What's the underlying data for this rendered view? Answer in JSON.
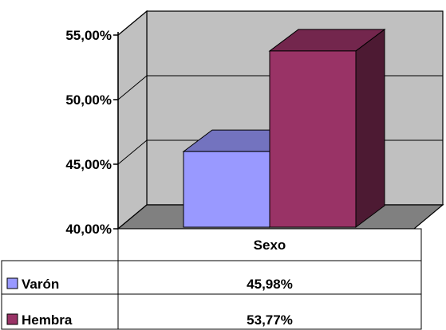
{
  "chart_data": {
    "type": "bar",
    "categories": [
      "Sexo"
    ],
    "series": [
      {
        "name": "Varón",
        "values": [
          45.98
        ],
        "label": "45,98%",
        "color": "#9999ff"
      },
      {
        "name": "Hembra",
        "values": [
          53.77
        ],
        "label": "53,77%",
        "color": "#993366"
      }
    ],
    "yticks": [
      "40,00%",
      "45,00%",
      "50,00%",
      "55,00%"
    ],
    "ytick_values": [
      40,
      45,
      50,
      55
    ],
    "ylim": [
      40,
      55
    ],
    "grid": true,
    "legend": "data-table",
    "style": "3d-clustered-column",
    "wall_color": "#c0c0c0",
    "floor_color": "#808080"
  }
}
